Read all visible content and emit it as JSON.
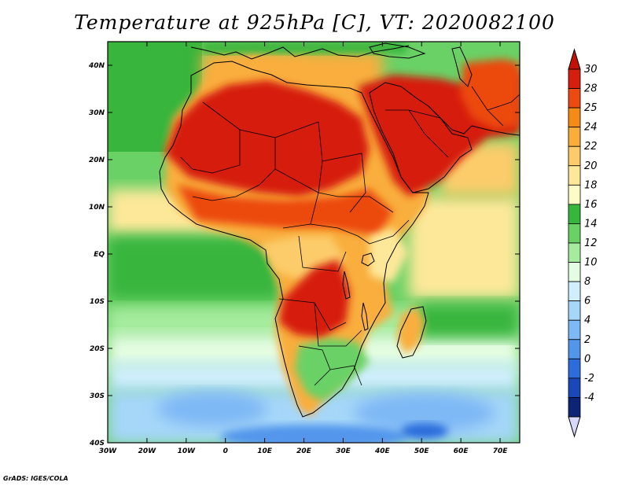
{
  "title": "Temperature at 925hPa [C], VT: 2020082100",
  "credit": "GrADS: IGES/COLA",
  "map": {
    "projection": "lat-lon",
    "lon_range": [
      -30,
      75
    ],
    "lat_range": [
      -40,
      45
    ],
    "region": "Africa and Middle East",
    "variable": "Temperature at 925hPa",
    "units": "C",
    "valid_time": "2020082100",
    "lon_ticks": [
      {
        "value": -30,
        "label": "30W"
      },
      {
        "value": -20,
        "label": "20W"
      },
      {
        "value": -10,
        "label": "10W"
      },
      {
        "value": 0,
        "label": "0"
      },
      {
        "value": 10,
        "label": "10E"
      },
      {
        "value": 20,
        "label": "20E"
      },
      {
        "value": 30,
        "label": "30E"
      },
      {
        "value": 40,
        "label": "40E"
      },
      {
        "value": 50,
        "label": "50E"
      },
      {
        "value": 60,
        "label": "60E"
      },
      {
        "value": 70,
        "label": "70E"
      }
    ],
    "lat_ticks": [
      {
        "value": 40,
        "label": "40N"
      },
      {
        "value": 30,
        "label": "30N"
      },
      {
        "value": 20,
        "label": "20N"
      },
      {
        "value": 10,
        "label": "10N"
      },
      {
        "value": 0,
        "label": "EQ"
      },
      {
        "value": -10,
        "label": "10S"
      },
      {
        "value": -20,
        "label": "20S"
      },
      {
        "value": -30,
        "label": "30S"
      },
      {
        "value": -40,
        "label": "40S"
      }
    ]
  },
  "colorbar": {
    "labels": [
      "30",
      "28",
      "25",
      "24",
      "22",
      "20",
      "18",
      "16",
      "14",
      "12",
      "10",
      "8",
      "6",
      "4",
      "2",
      "0",
      "-2",
      "-4"
    ],
    "colors": [
      "#d61e0e",
      "#ec4a10",
      "#f58a17",
      "#f9ae3c",
      "#fccc6b",
      "#fde89a",
      "#fefcc6",
      "#37b53c",
      "#6ad166",
      "#a6ec9f",
      "#e4fde2",
      "#cfeffd",
      "#a6d7f9",
      "#7eb8f5",
      "#5296ec",
      "#2c6ddb",
      "#1a48b8",
      "#0d2375"
    ],
    "top_arrow_color": "#c41005",
    "bottom_arrow_color": "#d8d8fc"
  }
}
